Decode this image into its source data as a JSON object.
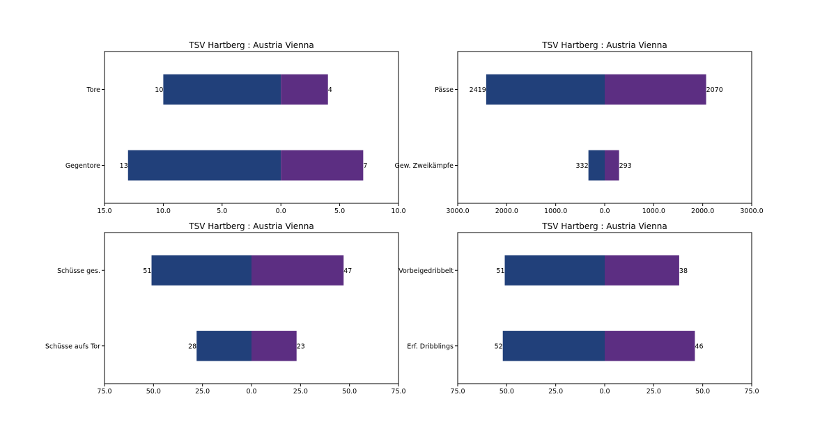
{
  "colors": {
    "home": "#21407a",
    "away": "#5c2e82"
  },
  "chart_data": [
    {
      "type": "bar",
      "orientation": "horizontal-diverging",
      "title": "TSV Hartberg : Austria Vienna",
      "categories": [
        "Tore",
        "Gegentore"
      ],
      "series": [
        {
          "name": "TSV Hartberg",
          "values": [
            10,
            13
          ]
        },
        {
          "name": "Austria Vienna",
          "values": [
            4,
            7
          ]
        }
      ],
      "xlim": [
        -15,
        10
      ],
      "xticks": [
        -15,
        -10,
        -5,
        0,
        5,
        10
      ],
      "xticklabels": [
        "15.0",
        "10.0",
        "5.0",
        "0.0",
        "5.0",
        "10.0"
      ]
    },
    {
      "type": "bar",
      "orientation": "horizontal-diverging",
      "title": "TSV Hartberg : Austria Vienna",
      "categories": [
        "Pässe",
        "Gew. Zweikämpfe"
      ],
      "series": [
        {
          "name": "TSV Hartberg",
          "values": [
            2419,
            332
          ]
        },
        {
          "name": "Austria Vienna",
          "values": [
            2070,
            293
          ]
        }
      ],
      "xlim": [
        -3000,
        3000
      ],
      "xticks": [
        -3000,
        -2000,
        -1000,
        0,
        1000,
        2000,
        3000
      ],
      "xticklabels": [
        "3000.0",
        "2000.0",
        "1000.0",
        "0.0",
        "1000.0",
        "2000.0",
        "3000.0"
      ]
    },
    {
      "type": "bar",
      "orientation": "horizontal-diverging",
      "title": "TSV Hartberg : Austria Vienna",
      "categories": [
        "Schüsse ges.",
        "Schüsse aufs Tor"
      ],
      "series": [
        {
          "name": "TSV Hartberg",
          "values": [
            51,
            28
          ]
        },
        {
          "name": "Austria Vienna",
          "values": [
            47,
            23
          ]
        }
      ],
      "xlim": [
        -75,
        75
      ],
      "xticks": [
        -75,
        -50,
        -25,
        0,
        25,
        50,
        75
      ],
      "xticklabels": [
        "75.0",
        "50.0",
        "25.0",
        "0.0",
        "25.0",
        "50.0",
        "75.0"
      ]
    },
    {
      "type": "bar",
      "orientation": "horizontal-diverging",
      "title": "TSV Hartberg : Austria Vienna",
      "categories": [
        "Vorbeigedribbelt",
        "Erf. Dribblings"
      ],
      "series": [
        {
          "name": "TSV Hartberg",
          "values": [
            51,
            52
          ]
        },
        {
          "name": "Austria Vienna",
          "values": [
            38,
            46
          ]
        }
      ],
      "xlim": [
        -75,
        75
      ],
      "xticks": [
        -75,
        -50,
        -25,
        0,
        25,
        50,
        75
      ],
      "xticklabels": [
        "75.0",
        "50.0",
        "25.0",
        "0.0",
        "25.0",
        "50.0",
        "75.0"
      ]
    }
  ]
}
